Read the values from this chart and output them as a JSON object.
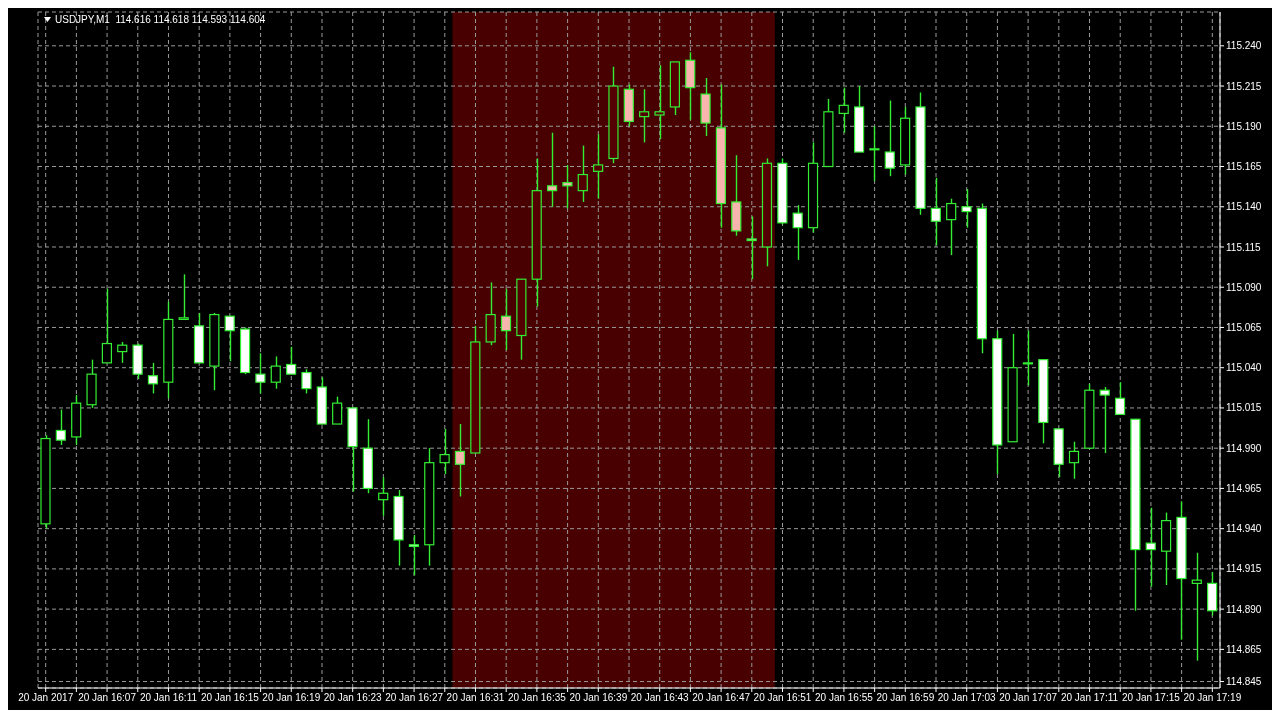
{
  "chart_data": {
    "type": "candlestick",
    "title": "USDJPY,M1  114.616 114.618 114.593 114.604",
    "x": [
      "2017-01-20T16:03",
      "2017-01-20T16:04",
      "2017-01-20T16:05",
      "2017-01-20T16:06",
      "2017-01-20T16:07",
      "2017-01-20T16:08",
      "2017-01-20T16:09",
      "2017-01-20T16:10",
      "2017-01-20T16:11",
      "2017-01-20T16:12",
      "2017-01-20T16:13",
      "2017-01-20T16:14",
      "2017-01-20T16:15",
      "2017-01-20T16:16",
      "2017-01-20T16:17",
      "2017-01-20T16:18",
      "2017-01-20T16:19",
      "2017-01-20T16:20",
      "2017-01-20T16:21",
      "2017-01-20T16:22",
      "2017-01-20T16:23",
      "2017-01-20T16:24",
      "2017-01-20T16:25",
      "2017-01-20T16:26",
      "2017-01-20T16:27",
      "2017-01-20T16:28",
      "2017-01-20T16:29",
      "2017-01-20T16:30",
      "2017-01-20T16:31",
      "2017-01-20T16:32",
      "2017-01-20T16:33",
      "2017-01-20T16:34",
      "2017-01-20T16:35",
      "2017-01-20T16:36",
      "2017-01-20T16:37",
      "2017-01-20T16:38",
      "2017-01-20T16:39",
      "2017-01-20T16:40",
      "2017-01-20T16:41",
      "2017-01-20T16:42",
      "2017-01-20T16:43",
      "2017-01-20T16:44",
      "2017-01-20T16:45",
      "2017-01-20T16:46",
      "2017-01-20T16:47",
      "2017-01-20T16:48",
      "2017-01-20T16:49",
      "2017-01-20T16:50",
      "2017-01-20T16:51",
      "2017-01-20T16:52",
      "2017-01-20T16:53",
      "2017-01-20T16:54",
      "2017-01-20T16:55",
      "2017-01-20T16:56",
      "2017-01-20T16:57",
      "2017-01-20T16:58",
      "2017-01-20T16:59",
      "2017-01-20T17:00",
      "2017-01-20T17:01",
      "2017-01-20T17:02",
      "2017-01-20T17:03",
      "2017-01-20T17:04",
      "2017-01-20T17:05",
      "2017-01-20T17:06",
      "2017-01-20T17:07",
      "2017-01-20T17:08",
      "2017-01-20T17:09",
      "2017-01-20T17:10",
      "2017-01-20T17:11",
      "2017-01-20T17:12",
      "2017-01-20T17:13",
      "2017-01-20T17:14",
      "2017-01-20T17:15",
      "2017-01-20T17:16",
      "2017-01-20T17:17",
      "2017-01-20T17:18",
      "2017-01-20T17:19"
    ],
    "ohlc": [
      [
        114.943,
        114.998,
        114.94,
        114.996
      ],
      [
        115.001,
        115.014,
        114.992,
        114.995
      ],
      [
        114.997,
        115.023,
        114.992,
        115.018
      ],
      [
        115.017,
        115.045,
        115.015,
        115.036
      ],
      [
        115.043,
        115.089,
        115.043,
        115.055
      ],
      [
        115.05,
        115.056,
        115.043,
        115.054
      ],
      [
        115.054,
        115.055,
        115.033,
        115.036
      ],
      [
        115.035,
        115.043,
        115.024,
        115.03
      ],
      [
        115.031,
        115.081,
        115.021,
        115.07
      ],
      [
        115.07,
        115.098,
        115.07,
        115.071
      ],
      [
        115.066,
        115.074,
        115.043,
        115.043
      ],
      [
        115.041,
        115.074,
        115.026,
        115.073
      ],
      [
        115.072,
        115.072,
        115.044,
        115.063
      ],
      [
        115.064,
        115.065,
        115.036,
        115.037
      ],
      [
        115.036,
        115.049,
        115.024,
        115.031
      ],
      [
        115.031,
        115.047,
        115.027,
        115.041
      ],
      [
        115.042,
        115.053,
        115.036,
        115.036
      ],
      [
        115.037,
        115.039,
        115.024,
        115.027
      ],
      [
        115.028,
        115.034,
        115.005,
        115.005
      ],
      [
        115.005,
        115.022,
        115.005,
        115.018
      ],
      [
        115.015,
        115.015,
        114.963,
        114.991
      ],
      [
        114.99,
        115.008,
        114.962,
        114.965
      ],
      [
        114.958,
        114.972,
        114.948,
        114.962
      ],
      [
        114.96,
        114.964,
        114.917,
        114.933
      ],
      [
        114.93,
        114.936,
        114.911,
        114.929
      ],
      [
        114.93,
        114.99,
        114.917,
        114.981
      ],
      [
        114.981,
        115.002,
        114.974,
        114.986
      ],
      [
        114.988,
        115.005,
        114.96,
        114.98
      ],
      [
        114.987,
        115.066,
        114.987,
        115.056
      ],
      [
        115.056,
        115.093,
        115.054,
        115.073
      ],
      [
        115.072,
        115.089,
        115.051,
        115.063
      ],
      [
        115.06,
        115.095,
        115.045,
        115.095
      ],
      [
        115.095,
        115.17,
        115.078,
        115.15
      ],
      [
        115.153,
        115.186,
        115.14,
        115.15
      ],
      [
        115.155,
        115.166,
        115.139,
        115.153
      ],
      [
        115.15,
        115.178,
        115.143,
        115.16
      ],
      [
        115.162,
        115.185,
        115.145,
        115.166
      ],
      [
        115.17,
        115.227,
        115.167,
        115.215
      ],
      [
        115.213,
        115.216,
        115.19,
        115.193
      ],
      [
        115.196,
        115.213,
        115.18,
        115.199
      ],
      [
        115.197,
        115.228,
        115.182,
        115.199
      ],
      [
        115.202,
        115.23,
        115.197,
        115.23
      ],
      [
        115.231,
        115.236,
        115.194,
        115.214
      ],
      [
        115.21,
        115.22,
        115.184,
        115.192
      ],
      [
        115.189,
        115.216,
        115.127,
        115.142
      ],
      [
        115.143,
        115.172,
        115.122,
        115.125
      ],
      [
        115.12,
        115.134,
        115.095,
        115.119
      ],
      [
        115.115,
        115.17,
        115.103,
        115.167
      ],
      [
        115.167,
        115.17,
        115.129,
        115.13
      ],
      [
        115.136,
        115.141,
        115.107,
        115.127
      ],
      [
        115.127,
        115.18,
        115.124,
        115.167
      ],
      [
        115.165,
        115.207,
        115.165,
        115.199
      ],
      [
        115.198,
        115.214,
        115.186,
        115.203
      ],
      [
        115.202,
        115.215,
        115.174,
        115.174
      ],
      [
        115.176,
        115.19,
        115.156,
        115.176
      ],
      [
        115.174,
        115.206,
        115.159,
        115.164
      ],
      [
        115.166,
        115.202,
        115.16,
        115.195
      ],
      [
        115.202,
        115.211,
        115.135,
        115.139
      ],
      [
        115.139,
        115.158,
        115.116,
        115.131
      ],
      [
        115.132,
        115.145,
        115.11,
        115.142
      ],
      [
        115.14,
        115.151,
        115.127,
        115.137
      ],
      [
        115.139,
        115.142,
        115.049,
        115.058
      ],
      [
        115.058,
        115.063,
        114.974,
        114.992
      ],
      [
        114.994,
        115.061,
        114.994,
        115.04
      ],
      [
        115.043,
        115.063,
        115.029,
        115.043
      ],
      [
        115.045,
        115.045,
        114.993,
        115.006
      ],
      [
        115.002,
        115.002,
        114.972,
        114.98
      ],
      [
        114.981,
        114.994,
        114.971,
        114.988
      ],
      [
        114.99,
        115.03,
        114.99,
        115.026
      ],
      [
        115.026,
        115.028,
        114.987,
        115.023
      ],
      [
        115.021,
        115.031,
        115.011,
        115.011
      ],
      [
        115.008,
        115.008,
        114.889,
        114.927
      ],
      [
        114.931,
        114.953,
        114.904,
        114.927
      ],
      [
        114.926,
        114.95,
        114.905,
        114.945
      ],
      [
        114.947,
        114.957,
        114.871,
        114.909
      ],
      [
        114.906,
        114.925,
        114.858,
        114.908
      ],
      [
        114.906,
        114.913,
        114.886,
        114.889
      ]
    ],
    "color": "#33ee33",
    "colors": [
      "#000000",
      "#ffffff",
      "#000000",
      "#000000",
      "#000000",
      "#000000",
      "#ffffff",
      "#ffffff",
      "#000000",
      "#000000",
      "#ffffff",
      "#000000",
      "#ffffff",
      "#ffffff",
      "#ffffff",
      "#000000",
      "#ffffff",
      "#ffffff",
      "#ffffff",
      "#000000",
      "#ffffff",
      "#ffffff",
      "#000000",
      "#ffffff",
      "#ffffff",
      "#000000",
      "#000000",
      "#f7b5ad",
      "#550000",
      "#550000",
      "#f7b5ad",
      "#550000",
      "#550000",
      "#f7b5ad",
      "#f7b5ad",
      "#550000",
      "#550000",
      "#550000",
      "#f7b5ad",
      "#550000",
      "#550000",
      "#550000",
      "#f7b5ad",
      "#f7b5ad",
      "#f7b5ad",
      "#f7b5ad",
      "#f7b5ad",
      "#550000",
      "#ffffff",
      "#ffffff",
      "#000000",
      "#000000",
      "#000000",
      "#ffffff",
      "#000000",
      "#ffffff",
      "#000000",
      "#ffffff",
      "#ffffff",
      "#000000",
      "#ffffff",
      "#ffffff",
      "#ffffff",
      "#000000",
      "#000000",
      "#ffffff",
      "#ffffff",
      "#000000",
      "#000000",
      "#ffffff",
      "#ffffff",
      "#ffffff",
      "#ffffff",
      "#000000",
      "#ffffff",
      "#000000",
      "#ffffff"
    ],
    "xlim": [
      "2017-01-20T16:02:30",
      "2017-01-20T17:19:30"
    ],
    "xticks": [
      {
        "value": "2017-01-20T16:03",
        "label": "20 Jan 2017"
      },
      {
        "value": "2017-01-20T16:05",
        "label": null
      },
      {
        "value": "2017-01-20T16:07",
        "label": "20 Jan 16:07"
      },
      {
        "value": "2017-01-20T16:09",
        "label": null
      },
      {
        "value": "2017-01-20T16:11",
        "label": "20 Jan 16:11"
      },
      {
        "value": "2017-01-20T16:13",
        "label": null
      },
      {
        "value": "2017-01-20T16:15",
        "label": "20 Jan 16:15"
      },
      {
        "value": "2017-01-20T16:17",
        "label": null
      },
      {
        "value": "2017-01-20T16:19",
        "label": "20 Jan 16:19"
      },
      {
        "value": "2017-01-20T16:21",
        "label": null
      },
      {
        "value": "2017-01-20T16:23",
        "label": "20 Jan 16:23"
      },
      {
        "value": "2017-01-20T16:25",
        "label": null
      },
      {
        "value": "2017-01-20T16:27",
        "label": "20 Jan 16:27"
      },
      {
        "value": "2017-01-20T16:29",
        "label": null
      },
      {
        "value": "2017-01-20T16:31",
        "label": "20 Jan 16:31"
      },
      {
        "value": "2017-01-20T16:33",
        "label": null
      },
      {
        "value": "2017-01-20T16:35",
        "label": "20 Jan 16:35"
      },
      {
        "value": "2017-01-20T16:37",
        "label": null
      },
      {
        "value": "2017-01-20T16:39",
        "label": "20 Jan 16:39"
      },
      {
        "value": "2017-01-20T16:41",
        "label": null
      },
      {
        "value": "2017-01-20T16:43",
        "label": "20 Jan 16:43"
      },
      {
        "value": "2017-01-20T16:45",
        "label": null
      },
      {
        "value": "2017-01-20T16:47",
        "label": "20 Jan 16:47"
      },
      {
        "value": "2017-01-20T16:49",
        "label": null
      },
      {
        "value": "2017-01-20T16:51",
        "label": "20 Jan 16:51"
      },
      {
        "value": "2017-01-20T16:53",
        "label": null
      },
      {
        "value": "2017-01-20T16:55",
        "label": "20 Jan 16:55"
      },
      {
        "value": "2017-01-20T16:57",
        "label": null
      },
      {
        "value": "2017-01-20T16:59",
        "label": "20 Jan 16:59"
      },
      {
        "value": "2017-01-20T17:01",
        "label": null
      },
      {
        "value": "2017-01-20T17:03",
        "label": "20 Jan 17:03"
      },
      {
        "value": "2017-01-20T17:05",
        "label": null
      },
      {
        "value": "2017-01-20T17:07",
        "label": "20 Jan 17:07"
      },
      {
        "value": "2017-01-20T17:09",
        "label": null
      },
      {
        "value": "2017-01-20T17:11",
        "label": "20 Jan 17:11"
      },
      {
        "value": "2017-01-20T17:13",
        "label": null
      },
      {
        "value": "2017-01-20T17:15",
        "label": "20 Jan 17:15"
      },
      {
        "value": "2017-01-20T17:17",
        "label": null
      },
      {
        "value": "2017-01-20T17:19",
        "label": "20 Jan 17:19"
      }
    ],
    "ylim": [
      114.841,
      115.261
    ],
    "yticks": [
      {
        "value": 114.845,
        "label": "114.845"
      },
      {
        "value": 114.865,
        "label": "114.865"
      },
      {
        "value": 114.89,
        "label": "114.890"
      },
      {
        "value": 114.915,
        "label": "114.915"
      },
      {
        "value": 114.94,
        "label": "114.940"
      },
      {
        "value": 114.965,
        "label": "114.965"
      },
      {
        "value": 114.99,
        "label": "114.990"
      },
      {
        "value": 115.015,
        "label": "115.015"
      },
      {
        "value": 115.04,
        "label": "115.040"
      },
      {
        "value": 115.065,
        "label": "115.065"
      },
      {
        "value": 115.09,
        "label": "115.090"
      },
      {
        "value": 115.115,
        "label": "115.115"
      },
      {
        "value": 115.14,
        "label": "115.140"
      },
      {
        "value": 115.165,
        "label": "115.165"
      },
      {
        "value": 115.19,
        "label": "115.190"
      },
      {
        "value": 115.215,
        "label": "115.215"
      },
      {
        "value": 115.24,
        "label": "115.240"
      }
    ],
    "bands": [
      {
        "axis": "x",
        "from": "2017-01-20T16:29:30",
        "to": "2017-01-20T16:50:30",
        "color": "#550000"
      }
    ],
    "grid": true
  }
}
